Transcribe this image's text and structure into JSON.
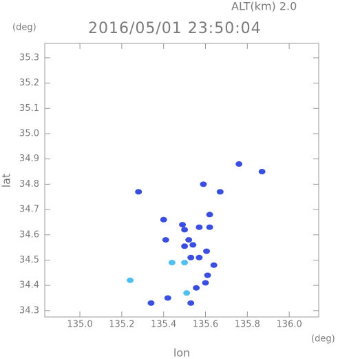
{
  "chart_data": {
    "type": "scatter",
    "title": "2016/05/01 23:50:04",
    "subtitle": "ALT(km) 2.0",
    "x_label": "lon",
    "y_label": "lat",
    "x_unit": "(deg)",
    "y_unit": "(deg)",
    "xlim": [
      134.832,
      136.141
    ],
    "ylim": [
      34.275,
      35.357
    ],
    "xticks": [
      {
        "value": 135.0,
        "label": "135.0"
      },
      135.2,
      135.4,
      135.6,
      135.8,
      {
        "value": 136.0,
        "label": "136.0"
      }
    ],
    "yticks": [
      34.3,
      34.4,
      34.5,
      34.6,
      34.7,
      34.8,
      34.9,
      {
        "value": 35.0,
        "label": "35.0"
      },
      35.1,
      35.2,
      35.3
    ],
    "x": [
      135.76,
      135.87,
      135.28,
      135.59,
      135.67,
      135.62,
      135.4,
      135.49,
      135.5,
      135.52,
      135.57,
      135.62,
      135.54,
      135.53,
      135.5,
      135.44,
      135.57,
      135.64,
      135.61,
      135.6,
      135.556,
      135.51,
      135.42,
      135.34,
      135.24,
      135.53,
      135.41,
      135.605,
      135.5
    ],
    "y": [
      34.88,
      34.85,
      34.77,
      34.8,
      34.77,
      34.68,
      34.66,
      34.64,
      34.62,
      34.58,
      34.63,
      34.63,
      34.56,
      34.51,
      34.49,
      34.49,
      34.51,
      34.48,
      34.44,
      34.41,
      34.39,
      34.37,
      34.35,
      34.33,
      34.42,
      34.33,
      34.58,
      34.535,
      34.555
    ],
    "colors": [
      "#3a4fe0",
      "#3a4fe0",
      "#3a4fe0",
      "#3a4fe0",
      "#3a4fe0",
      "#3a4fe0",
      "#3a4fe0",
      "#3a4fe0",
      "#3a4fe0",
      "#3a4fe0",
      "#3a4fe0",
      "#3a4fe0",
      "#3a4fe0",
      "#3a4fe0",
      "#4fc0f0",
      "#4fc0f0",
      "#3a4fe0",
      "#3a4fe0",
      "#3a4fe0",
      "#3a4fe0",
      "#3a4fe0",
      "#4fc0f0",
      "#3a4fe0",
      "#3a4fe0",
      "#4fc0f0",
      "#3a4fe0",
      "#3a4fe0",
      "#3a4fe0",
      "#3a4fe0"
    ]
  }
}
